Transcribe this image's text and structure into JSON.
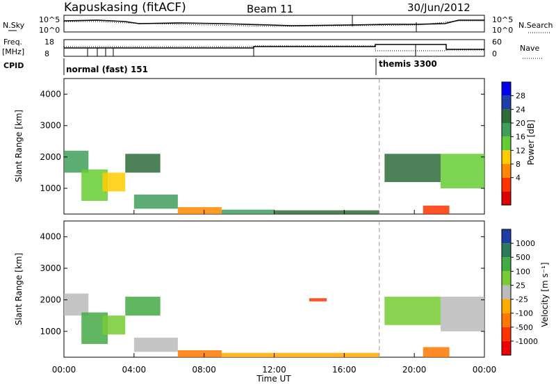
{
  "header": {
    "station": "Kapuskasing (fitACF)",
    "beam": "Beam 11",
    "date": "30/Jun/2012"
  },
  "top_panels": {
    "nsky_label": "N.Sky",
    "nsky_ticks": [
      "10^5",
      "10^0"
    ],
    "nsearch_ticks": [
      "10^5",
      "10^0"
    ],
    "nsearch_label": "N.Search",
    "freq_label": "Freq.",
    "freq_unit": "[MHz]",
    "freq_ticks": [
      "18",
      "8"
    ],
    "nave_ticks": [
      "60",
      "0"
    ],
    "nave_label": "Nave",
    "cpid_label": "CPID",
    "cpid_modes": [
      {
        "name": "normal (fast) 151",
        "start_hour": 0
      },
      {
        "name": "themis 3300",
        "start_hour": 18
      }
    ]
  },
  "colorbars": {
    "power": {
      "label": "Power [dB]",
      "ticks": [
        "28",
        "24",
        "20",
        "16",
        "12",
        "8",
        "4"
      ],
      "colors": [
        "#0000ee",
        "#1c3fa8",
        "#2e6b3a",
        "#3f9e5a",
        "#66cc33",
        "#ffcc00",
        "#ff8800",
        "#ff3300",
        "#dd0000"
      ]
    },
    "velocity": {
      "label": "Velocity [m s⁻¹]",
      "ticks": [
        "1000",
        "500",
        "100",
        "25",
        "-25",
        "-100",
        "-500",
        "-1000"
      ],
      "colors": [
        "#1e3ea6",
        "#2d7a5a",
        "#44aa44",
        "#77cc33",
        "#bbbbbb",
        "#ffaa00",
        "#ff7700",
        "#ff3300",
        "#ee0000"
      ]
    }
  },
  "chart_data": [
    {
      "type": "heatmap",
      "title": "Power",
      "ylabel": "Slant Range [km]",
      "xlabel": "Time UT",
      "x_ticks": [
        "00:00",
        "04:00",
        "08:00",
        "12:00",
        "16:00",
        "20:00",
        "00:00"
      ],
      "x_range_hours": [
        0,
        24
      ],
      "y_ticks": [
        "1000",
        "2000",
        "3000",
        "4000"
      ],
      "y_range_km": [
        180,
        4500
      ],
      "marker_line_hour": 18,
      "regions": [
        {
          "t0": 0.0,
          "t1": 1.4,
          "r0": 1500,
          "r1": 2200,
          "v": 3
        },
        {
          "t0": 1.0,
          "t1": 2.5,
          "r0": 600,
          "r1": 1600,
          "v": 4
        },
        {
          "t0": 2.2,
          "t1": 3.5,
          "r0": 900,
          "r1": 1500,
          "v": 5
        },
        {
          "t0": 3.5,
          "t1": 5.5,
          "r0": 1500,
          "r1": 2100,
          "v": 2
        },
        {
          "t0": 4.0,
          "t1": 6.5,
          "r0": 350,
          "r1": 800,
          "v": 3
        },
        {
          "t0": 6.5,
          "t1": 9.0,
          "r0": 180,
          "r1": 400,
          "v": 6
        },
        {
          "t0": 9.0,
          "t1": 12.0,
          "r0": 180,
          "r1": 320,
          "v": 3
        },
        {
          "t0": 12.0,
          "t1": 18.0,
          "r0": 180,
          "r1": 300,
          "v": 2
        },
        {
          "t0": 18.3,
          "t1": 21.5,
          "r0": 1200,
          "r1": 2100,
          "v": 2
        },
        {
          "t0": 20.5,
          "t1": 22.0,
          "r0": 180,
          "r1": 450,
          "v": 7
        },
        {
          "t0": 21.5,
          "t1": 24.0,
          "r0": 1000,
          "r1": 2100,
          "v": 4
        }
      ]
    },
    {
      "type": "heatmap",
      "title": "Velocity",
      "ylabel": "Slant Range [km]",
      "xlabel": "Time UT",
      "x_ticks": [
        "00:00",
        "04:00",
        "08:00",
        "12:00",
        "16:00",
        "20:00",
        "00:00"
      ],
      "x_range_hours": [
        0,
        24
      ],
      "y_ticks": [
        "1000",
        "2000",
        "3000",
        "4000"
      ],
      "y_range_km": [
        180,
        4500
      ],
      "marker_line_hour": 18,
      "regions": [
        {
          "t0": 0.0,
          "t1": 1.4,
          "r0": 1500,
          "r1": 2200,
          "v": 4
        },
        {
          "t0": 1.0,
          "t1": 2.5,
          "r0": 600,
          "r1": 1600,
          "v": 2
        },
        {
          "t0": 2.2,
          "t1": 3.5,
          "r0": 900,
          "r1": 1500,
          "v": 3
        },
        {
          "t0": 3.5,
          "t1": 5.5,
          "r0": 1500,
          "r1": 2100,
          "v": 2
        },
        {
          "t0": 4.0,
          "t1": 6.5,
          "r0": 350,
          "r1": 800,
          "v": 4
        },
        {
          "t0": 6.5,
          "t1": 9.0,
          "r0": 180,
          "r1": 400,
          "v": 6
        },
        {
          "t0": 9.0,
          "t1": 18.0,
          "r0": 180,
          "r1": 320,
          "v": 5
        },
        {
          "t0": 14.0,
          "t1": 15.0,
          "r0": 1950,
          "r1": 2050,
          "v": 7
        },
        {
          "t0": 18.3,
          "t1": 21.5,
          "r0": 1200,
          "r1": 2100,
          "v": 3
        },
        {
          "t0": 20.5,
          "t1": 22.0,
          "r0": 180,
          "r1": 500,
          "v": 6
        },
        {
          "t0": 21.5,
          "t1": 24.0,
          "r0": 1000,
          "r1": 2100,
          "v": 4
        }
      ]
    }
  ]
}
